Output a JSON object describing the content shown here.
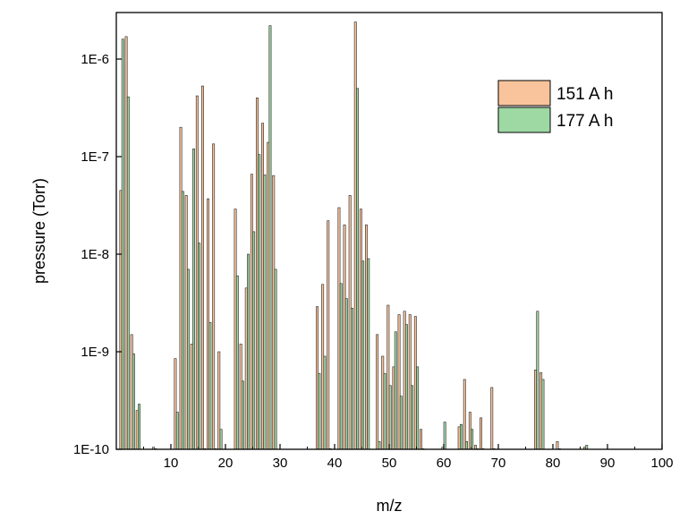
{
  "chart_data": {
    "type": "bar",
    "title": "",
    "xlabel": "m/z",
    "ylabel": "pressure (Torr)",
    "xlim": [
      0,
      100
    ],
    "ylim": [
      1e-10,
      3e-06
    ],
    "yscale": "log",
    "grid": false,
    "legend_position": "top-right",
    "x_ticks": [
      "10",
      "20",
      "30",
      "40",
      "50",
      "60",
      "70",
      "80",
      "90",
      "100"
    ],
    "y_ticks": [
      "1E-10",
      "1E-9",
      "1E-8",
      "1E-7",
      "1E-6"
    ],
    "series": [
      {
        "name": "151 A h",
        "color": "#f9c39b",
        "x": [
          1,
          2,
          3,
          4,
          7,
          11,
          12,
          13,
          14,
          15,
          16,
          17,
          18,
          19,
          22,
          23,
          24,
          25,
          26,
          27,
          28,
          29,
          37,
          38,
          39,
          41,
          42,
          43,
          44,
          45,
          46,
          48,
          49,
          50,
          51,
          52,
          53,
          54,
          55,
          56,
          60,
          63,
          64,
          65,
          66,
          67,
          69,
          77,
          78,
          81,
          86
        ],
        "values": [
          4.5e-08,
          1.7e-06,
          1.5e-09,
          2.5e-10,
          1.05e-10,
          8.5e-10,
          2e-07,
          4e-08,
          1.2e-09,
          4.2e-07,
          5.3e-07,
          3.7e-08,
          1.35e-07,
          1e-09,
          2.9e-08,
          1.2e-09,
          4.5e-09,
          6.6e-08,
          4e-07,
          2.2e-07,
          1.4e-07,
          6.4e-08,
          2.9e-09,
          4.9e-09,
          2.2e-08,
          3e-08,
          2e-08,
          4e-08,
          2.4e-06,
          2.9e-08,
          2e-08,
          1.5e-09,
          9e-10,
          3e-09,
          7e-10,
          2.4e-09,
          2.6e-09,
          2.4e-09,
          2.3e-09,
          1.6e-10,
          1.05e-10,
          1.7e-10,
          5.2e-10,
          2.4e-10,
          1.1e-10,
          2.1e-10,
          4.3e-10,
          6.5e-10,
          6.1e-10,
          1.2e-10,
          1.05e-10
        ]
      },
      {
        "name": "177 A h",
        "color": "#9ed8a3",
        "x": [
          1,
          2,
          3,
          4,
          7,
          11,
          12,
          13,
          14,
          15,
          16,
          17,
          18,
          19,
          22,
          23,
          24,
          25,
          26,
          27,
          28,
          29,
          37,
          38,
          39,
          41,
          42,
          43,
          44,
          45,
          46,
          48,
          49,
          50,
          51,
          52,
          53,
          54,
          55,
          56,
          60,
          63,
          64,
          65,
          66,
          67,
          69,
          77,
          78,
          81,
          86
        ],
        "values": [
          1.6e-06,
          4.1e-07,
          9.5e-10,
          2.9e-10,
          1e-10,
          2.4e-10,
          4.4e-08,
          7e-09,
          1.2e-07,
          1.3e-08,
          1e-10,
          2e-09,
          1e-10,
          1.6e-10,
          6e-09,
          5e-10,
          1e-08,
          1.7e-08,
          1.05e-07,
          6.5e-08,
          2.2e-06,
          7e-09,
          6e-10,
          9e-10,
          1e-10,
          5e-09,
          3.5e-09,
          2.8e-09,
          5e-07,
          8.5e-09,
          9e-09,
          1.2e-10,
          6e-10,
          4.5e-10,
          1.6e-09,
          3.5e-10,
          1.9e-09,
          4.5e-10,
          7e-10,
          1e-10,
          1.9e-10,
          1.8e-10,
          1.2e-10,
          1.6e-10,
          1e-10,
          1e-10,
          1e-10,
          2.6e-09,
          5.2e-10,
          1e-10,
          1.1e-10
        ]
      }
    ]
  }
}
